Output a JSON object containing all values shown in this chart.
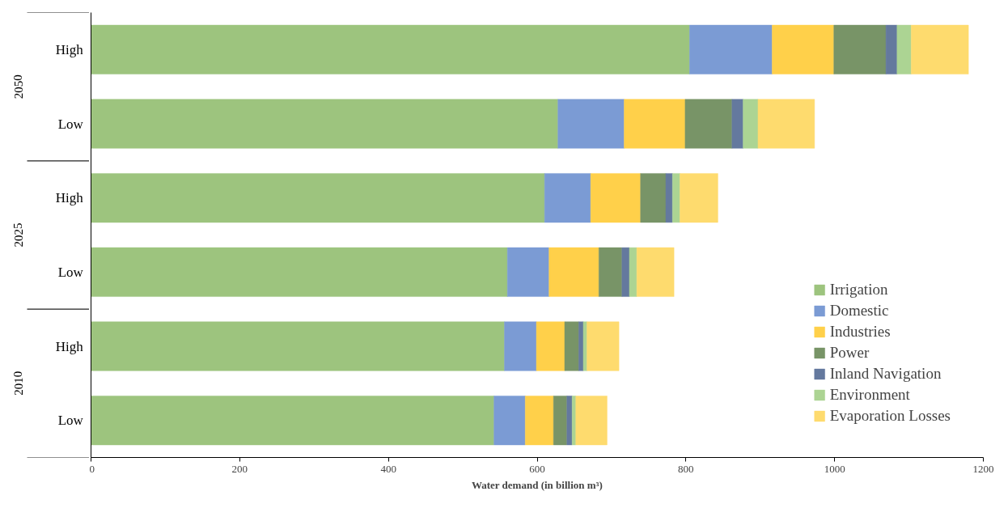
{
  "chart_data": {
    "type": "bar",
    "orientation": "horizontal",
    "stacked": true,
    "xlabel": "Water demand (in billion m³)",
    "categories": [
      "High",
      "Low",
      "High",
      "Low",
      "High",
      "Low"
    ],
    "annotations": [
      "2050",
      "2025",
      "2010"
    ],
    "xlim": [
      0,
      1200
    ],
    "xticks": [
      0,
      200,
      400,
      600,
      800,
      1000,
      1200
    ],
    "legend": "bottom right",
    "grid": false,
    "series": [
      {
        "name": "Irrigation",
        "color": "#9dc47e",
        "values": [
          805,
          628,
          610,
          560,
          556,
          542
        ]
      },
      {
        "name": "Domestic",
        "color": "#7b9bd4",
        "values": [
          111,
          89,
          62,
          56,
          43,
          42
        ]
      },
      {
        "name": "Industries",
        "color": "#ffd04a",
        "values": [
          83,
          82,
          67,
          67,
          38,
          38
        ]
      },
      {
        "name": "Power",
        "color": "#789467",
        "values": [
          70,
          63,
          34,
          31,
          19,
          18
        ]
      },
      {
        "name": "Inland Navigation",
        "color": "#64799e",
        "values": [
          15,
          15,
          9,
          10,
          6,
          7
        ]
      },
      {
        "name": "Environment",
        "color": "#acd493",
        "values": [
          19,
          20,
          10,
          10,
          5,
          5
        ]
      },
      {
        "name": "Evaporation Losses",
        "color": "#fedb6e",
        "values": [
          77,
          76,
          51,
          50,
          43,
          42
        ]
      }
    ]
  }
}
